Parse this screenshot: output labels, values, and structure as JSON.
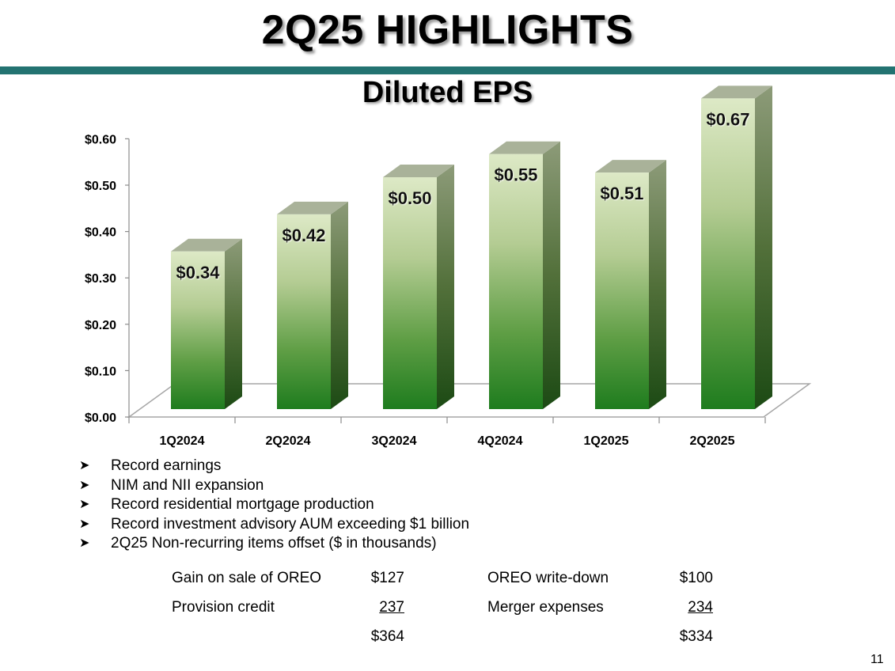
{
  "title": "2Q25 HIGHLIGHTS",
  "subtitle": "Diluted EPS",
  "colors": {
    "rule": "#237371",
    "bar_top": "#dde9c6",
    "bar_bottom": "#1e7c1e",
    "bar_side": "#3f5a2a",
    "bar_cap": "#a9b299"
  },
  "chart_data": {
    "type": "bar",
    "title": "Diluted EPS",
    "categories": [
      "1Q2024",
      "2Q2024",
      "3Q2024",
      "4Q2024",
      "1Q2025",
      "2Q2025"
    ],
    "values": [
      0.34,
      0.42,
      0.5,
      0.55,
      0.51,
      0.67
    ],
    "value_labels": [
      "$0.34",
      "$0.42",
      "$0.50",
      "$0.55",
      "$0.51",
      "$0.67"
    ],
    "ylim": [
      0,
      0.6
    ],
    "yticks": [
      0.0,
      0.1,
      0.2,
      0.3,
      0.4,
      0.5,
      0.6
    ],
    "ytick_labels": [
      "$0.00",
      "$0.10",
      "$0.20",
      "$0.30",
      "$0.40",
      "$0.50",
      "$0.60"
    ],
    "xlabel": "",
    "ylabel": ""
  },
  "bullets": [
    "Record earnings",
    "NIM and NII expansion",
    "Record residential mortgage production",
    "Record investment advisory AUM exceeding $1 billion",
    "2Q25 Non-recurring items offset ($ in thousands)"
  ],
  "items": {
    "row1": {
      "label1": "Gain on sale of OREO",
      "amount1": "$127",
      "label2": "OREO write-down",
      "amount2": "$100"
    },
    "row2": {
      "label1": "Provision credit",
      "amount1": "237",
      "label2": "Merger expenses",
      "amount2": "234"
    },
    "totals": {
      "total1": "$364",
      "total2": "$334"
    }
  },
  "page_number": "11"
}
